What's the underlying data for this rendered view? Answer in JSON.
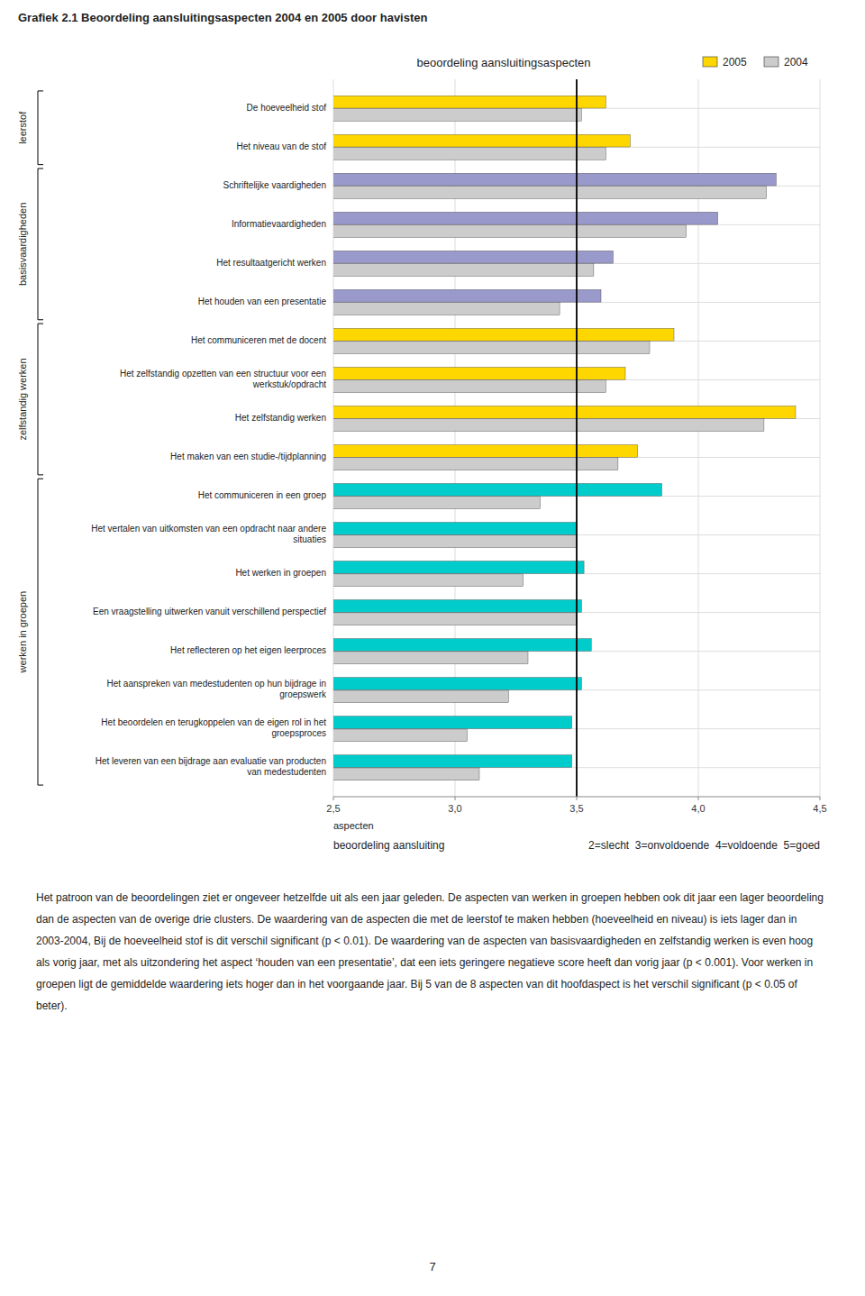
{
  "chart_data": {
    "type": "bar",
    "orientation": "horizontal",
    "title": "Grafiek 2.1 Beoordeling aansluitingsaspecten 2004 en 2005 door havisten",
    "subtitle": "beoordeling aansluitingsaspecten",
    "xlabel": "beoordeling aansluiting",
    "ylabel": "aspecten",
    "scale_note": "2=slecht  3=onvoldoende  4=voldoende  5=goed",
    "categories": [
      "De hoeveelheid stof",
      "Het niveau van de stof",
      "Schriftelijke vaardigheden",
      "Informatievaardigheden",
      "Het resultaatgericht werken",
      "Het houden van een presentatie",
      "Het communiceren met de docent",
      "Het zelfstandig opzetten van een structuur voor een\nwerkstuk/opdracht",
      "Het zelfstandig werken",
      "Het maken van een studie-/tijdplanning",
      "Het communiceren in een groep",
      "Het vertalen van uitkomsten van een opdracht naar andere\nsituaties",
      "Het werken in groepen",
      "Een vraagstelling uitwerken vanuit verschillend perspectief",
      "Het reflecteren op het eigen leerproces",
      "Het aanspreken van medestudenten op hun bijdrage in\ngroepswerk",
      "Het beoordelen en terugkoppelen van de eigen rol in het\ngroepsproces",
      "Het leveren van een bijdrage aan evaluatie van producten\nvan medestudenten"
    ],
    "series": [
      {
        "name": "2005",
        "color": "#FFD700",
        "colors": [
          "#FFD700",
          "#FFD700",
          "#9999CC",
          "#9999CC",
          "#9999CC",
          "#9999CC",
          "#FFD700",
          "#FFD700",
          "#FFD700",
          "#FFD700",
          "#00CCCC",
          "#00CCCC",
          "#00CCCC",
          "#00CCCC",
          "#00CCCC",
          "#00CCCC",
          "#00CCCC",
          "#00CCCC"
        ],
        "values": [
          3.62,
          3.72,
          4.32,
          4.08,
          3.65,
          3.6,
          3.9,
          3.7,
          4.4,
          3.75,
          3.85,
          3.5,
          3.53,
          3.52,
          3.56,
          3.52,
          3.48,
          3.48
        ]
      },
      {
        "name": "2004",
        "color": "#CCCCCC",
        "values": [
          3.52,
          3.62,
          4.28,
          3.95,
          3.57,
          3.43,
          3.8,
          3.62,
          4.27,
          3.67,
          3.35,
          3.5,
          3.28,
          3.5,
          3.3,
          3.22,
          3.05,
          3.1
        ]
      }
    ],
    "groups": [
      {
        "label": "leerstof",
        "start": 0,
        "end": 1
      },
      {
        "label": "basisvaardigheden",
        "start": 2,
        "end": 5
      },
      {
        "label": "zelfstandig werken",
        "start": 6,
        "end": 9
      },
      {
        "label": "werken in groepen",
        "start": 10,
        "end": 17
      }
    ],
    "xlim": [
      2.5,
      4.5
    ],
    "xticks": [
      {
        "value": 2.5,
        "label": "2,5"
      },
      {
        "value": 3.0,
        "label": "3,0"
      },
      {
        "value": 3.5,
        "label": "3,5"
      },
      {
        "value": 4.0,
        "label": "4,0"
      },
      {
        "value": 4.5,
        "label": "4,5"
      }
    ],
    "reference_x": 3.5,
    "grid": true,
    "legend": "top-right"
  },
  "paragraph": "Het patroon van de beoordelingen ziet er ongeveer hetzelfde uit als een jaar geleden. De aspecten van werken in groepen hebben ook dit jaar een lager beoordeling dan de aspecten van de overige drie clusters. De waardering van de aspecten die met de leerstof te maken hebben (hoeveelheid en niveau) is iets lager dan in 2003-2004, Bij de hoeveelheid stof is dit verschil significant (p < 0.01). De waardering van de aspecten van basisvaardigheden en zelfstandig werken is even hoog als vorig jaar, met als uitzondering het aspect ‘houden van een presentatie’, dat een iets geringere negatieve score heeft dan vorig jaar (p < 0.001). Voor werken in groepen ligt de gemiddelde waardering iets hoger dan in het voorgaande jaar. Bij 5 van de 8 aspecten van dit hoofdaspect is het verschil significant (p < 0.05 of beter).",
  "page_number": "7"
}
